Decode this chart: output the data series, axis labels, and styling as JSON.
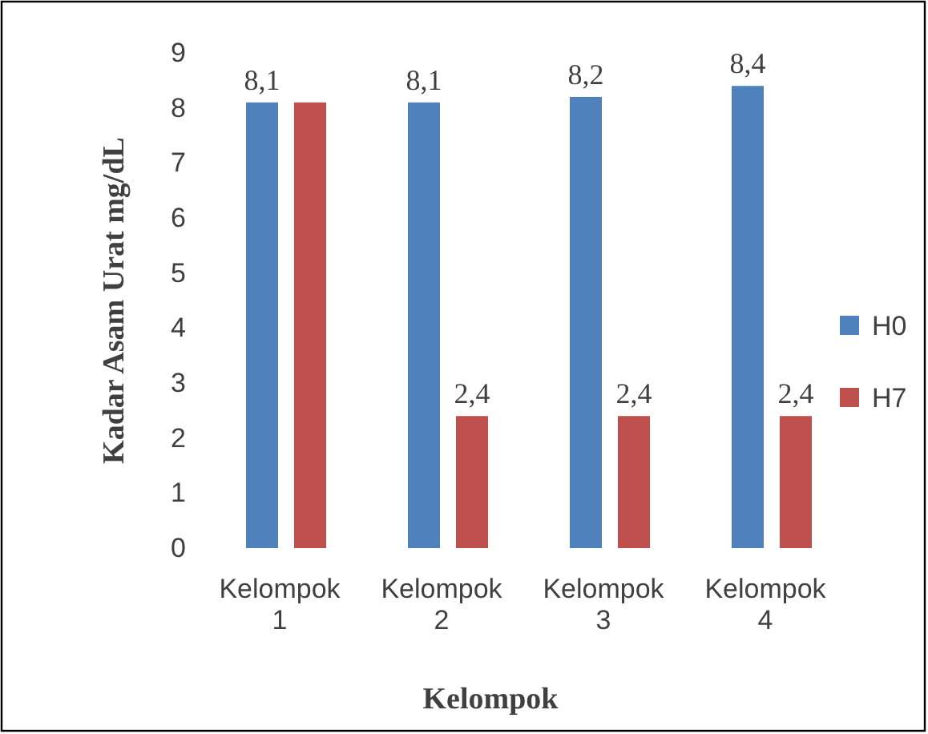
{
  "chart_data": {
    "type": "bar",
    "xlabel": "Kelompok",
    "ylabel": "Kadar Asam Urat mg/dL",
    "categories": [
      "Kelompok 1",
      "Kelompok 2",
      "Kelompok 3",
      "Kelompok 4"
    ],
    "series": [
      {
        "name": "H0",
        "color": "#4f81bd",
        "values": [
          8.1,
          8.1,
          8.2,
          8.4
        ],
        "value_labels": [
          "8,1",
          "8,1",
          "8,2",
          "8,4"
        ]
      },
      {
        "name": "H7",
        "color": "#c0504d",
        "values": [
          8.1,
          2.4,
          2.4,
          2.4
        ],
        "value_labels": [
          null,
          "2,4",
          "2,4",
          "2,4"
        ]
      }
    ],
    "ylim": [
      0,
      9
    ],
    "yticks": [
      0,
      1,
      2,
      3,
      4,
      5,
      6,
      7,
      8,
      9
    ],
    "grid": false,
    "legend": "right"
  }
}
